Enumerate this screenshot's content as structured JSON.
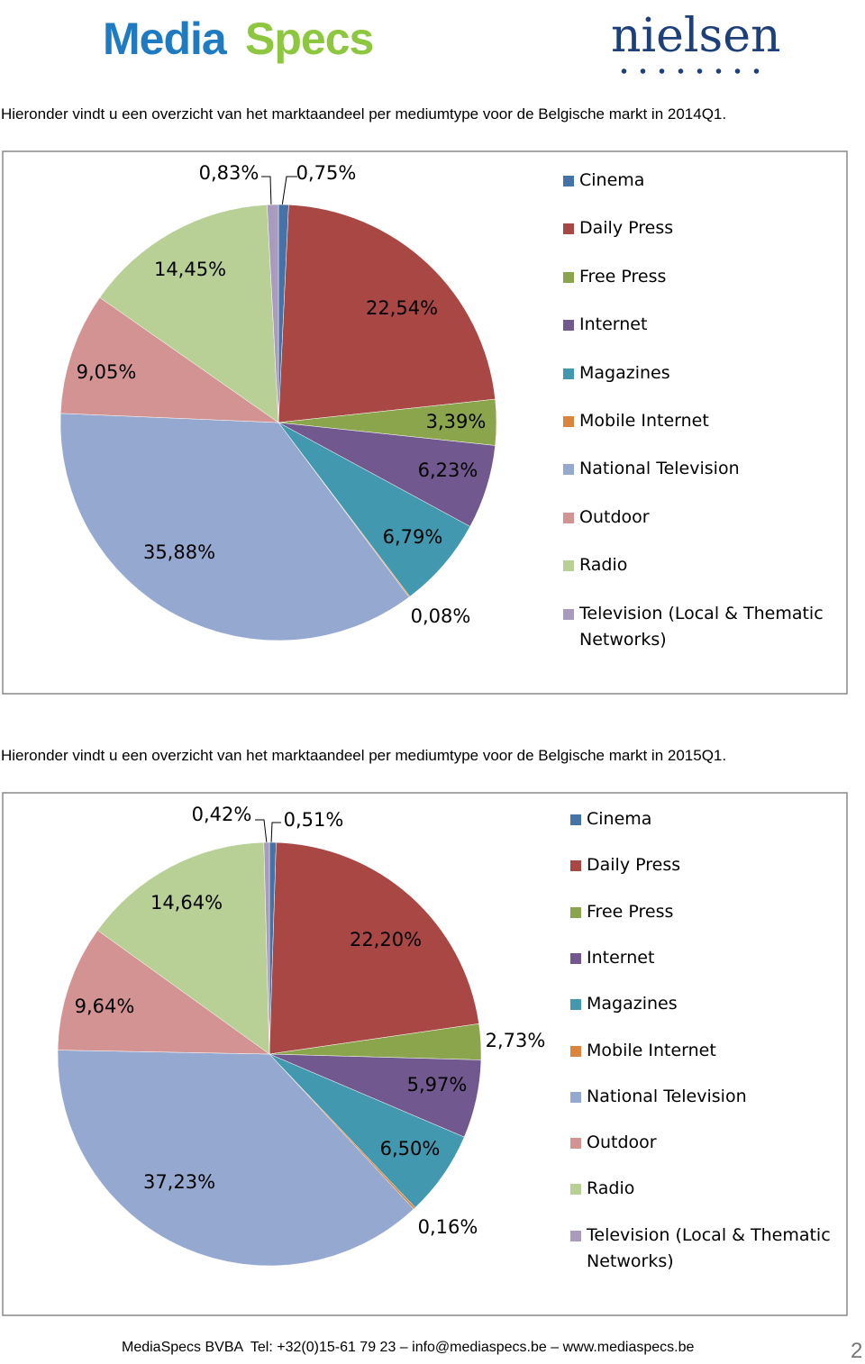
{
  "header": {
    "logo_left": [
      "Media",
      "Specs"
    ],
    "logo_right": "nielsen"
  },
  "intros": [
    "Hieronder vindt u een overzicht van het marktaandeel per mediumtype voor de Belgische markt in 2014Q1.",
    "Hieronder vindt u een overzicht van het marktaandeel per mediumtype voor de Belgische markt in 2015Q1."
  ],
  "chart_data": [
    {
      "type": "pie",
      "categories": [
        "Cinema",
        "Daily Press",
        "Free Press",
        "Internet",
        "Magazines",
        "Mobile Internet",
        "National Television",
        "Outdoor",
        "Radio",
        "Television (Local & Thematic Networks)"
      ],
      "values": [
        0.75,
        22.54,
        3.39,
        6.23,
        6.79,
        0.08,
        35.88,
        9.05,
        14.45,
        0.83
      ],
      "value_labels": [
        "0,75%",
        "22,54%",
        "3,39%",
        "6,23%",
        "6,79%",
        "0,08%",
        "35,88%",
        "9,05%",
        "14,45%",
        "0,83%"
      ],
      "colors": [
        "#4572a7",
        "#a84743",
        "#8ba54d",
        "#71588f",
        "#4198af",
        "#db843d",
        "#94a8d0",
        "#d29392",
        "#b8cf96",
        "#a99bbd"
      ],
      "legend": "right"
    },
    {
      "type": "pie",
      "categories": [
        "Cinema",
        "Daily Press",
        "Free Press",
        "Internet",
        "Magazines",
        "Mobile Internet",
        "National Television",
        "Outdoor",
        "Radio",
        "Television (Local & Thematic Networks)"
      ],
      "values": [
        0.51,
        22.2,
        2.73,
        5.97,
        6.5,
        0.16,
        37.23,
        9.64,
        14.64,
        0.42
      ],
      "value_labels": [
        "0,51%",
        "22,20%",
        "2,73%",
        "5,97%",
        "6,50%",
        "0,16%",
        "37,23%",
        "9,64%",
        "14,64%",
        "0,42%"
      ],
      "colors": [
        "#4572a7",
        "#a84743",
        "#8ba54d",
        "#71588f",
        "#4198af",
        "#db843d",
        "#94a8d0",
        "#d29392",
        "#b8cf96",
        "#a99bbd"
      ],
      "legend": "right"
    }
  ],
  "footer": "MediaSpecs BVBA  Tel: +32(0)15-61 79 23 – info@mediaspecs.be – www.mediaspecs.be",
  "page_number": 2
}
